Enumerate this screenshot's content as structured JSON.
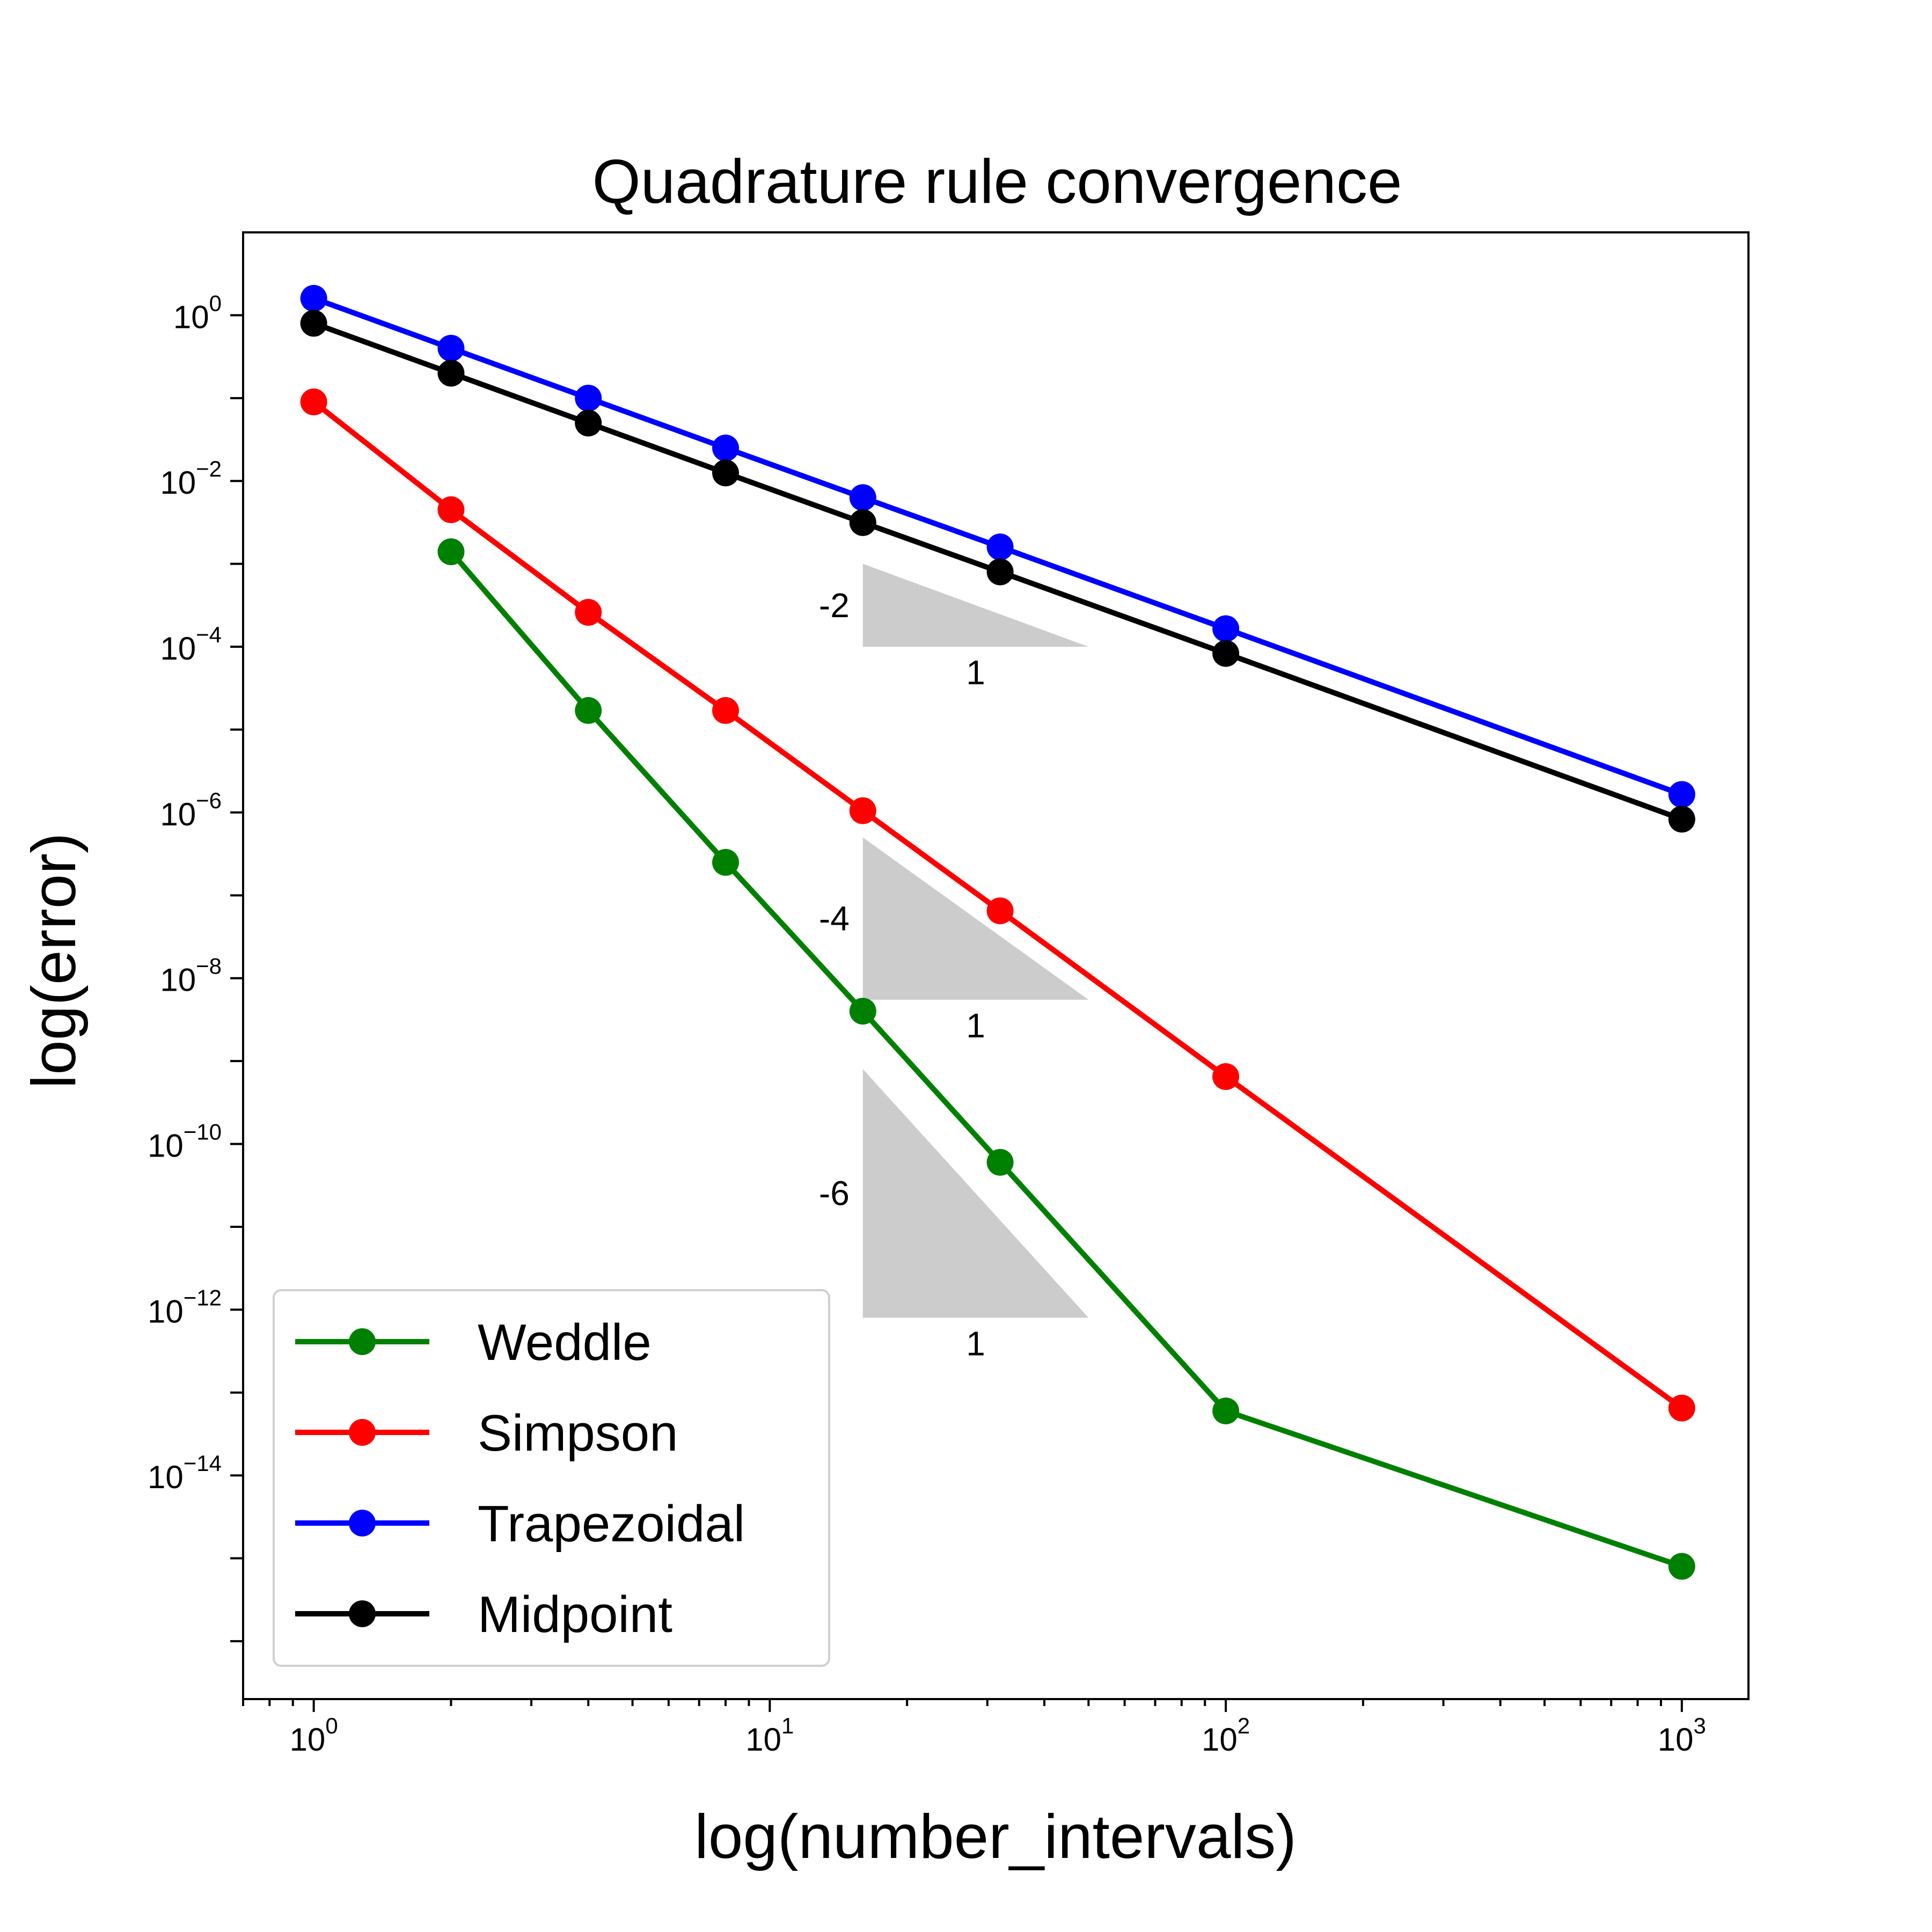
{
  "chart_data": {
    "type": "line",
    "title": "Quadrature rule convergence",
    "xlabel": "log(number_intervals)",
    "ylabel": "log(error)",
    "xscale": "log",
    "yscale": "log",
    "xlim": [
      0.7,
      1400
    ],
    "ylim": [
      2e-17,
      10
    ],
    "x_ticks": [
      {
        "base": "10",
        "exp": "0",
        "value": 1
      },
      {
        "base": "10",
        "exp": "1",
        "value": 10
      },
      {
        "base": "10",
        "exp": "2",
        "value": 100
      },
      {
        "base": "10",
        "exp": "3",
        "value": 1000
      }
    ],
    "y_ticks": [
      {
        "base": "10",
        "exp": "0",
        "value": 1
      },
      {
        "base": "10",
        "exp": "−2",
        "value": 0.01
      },
      {
        "base": "10",
        "exp": "−4",
        "value": 0.0001
      },
      {
        "base": "10",
        "exp": "−6",
        "value": 1e-06
      },
      {
        "base": "10",
        "exp": "−8",
        "value": 1e-08
      },
      {
        "base": "10",
        "exp": "−10",
        "value": 1e-10
      },
      {
        "base": "10",
        "exp": "−12",
        "value": 1e-12
      },
      {
        "base": "10",
        "exp": "−14",
        "value": 1e-14
      }
    ],
    "grid": false,
    "legend_position": "lower-left",
    "series": [
      {
        "name": "Weddle",
        "color": "#008000",
        "x": [
          2,
          4,
          8,
          16,
          32,
          100,
          1000
        ],
        "y": [
          0.0014,
          1.7e-05,
          2.5e-07,
          4e-09,
          6e-11,
          6e-14,
          8e-16
        ]
      },
      {
        "name": "Simpson",
        "color": "#ff0000",
        "x": [
          1,
          2,
          4,
          8,
          16,
          32,
          100,
          1000
        ],
        "y": [
          0.09,
          0.0045,
          0.00026,
          1.7e-05,
          1.05e-06,
          6.5e-08,
          6.5e-10,
          6.5e-14
        ]
      },
      {
        "name": "Trapezoidal",
        "color": "#0000ff",
        "x": [
          1,
          2,
          4,
          8,
          16,
          32,
          100,
          1000
        ],
        "y": [
          1.6,
          0.4,
          0.1,
          0.025,
          0.0063,
          0.0016,
          0.000165,
          1.65e-06
        ]
      },
      {
        "name": "Midpoint",
        "color": "#000000",
        "x": [
          1,
          2,
          4,
          8,
          16,
          32,
          100,
          1000
        ],
        "y": [
          0.8,
          0.2,
          0.05,
          0.0125,
          0.00315,
          0.0008,
          8.3e-05,
          8.3e-07
        ]
      }
    ],
    "slope_triangles": [
      {
        "rise_label": "-2",
        "run_label": "1",
        "x0": 16,
        "x1": 50,
        "y_top": 0.001,
        "y_bottom": 0.0001,
        "color": "#cccccc"
      },
      {
        "rise_label": "-4",
        "run_label": "1",
        "x0": 16,
        "x1": 50,
        "y_top": 5e-07,
        "y_bottom": 5.5e-09,
        "color": "#cccccc"
      },
      {
        "rise_label": "-6",
        "run_label": "1",
        "x0": 16,
        "x1": 50,
        "y_top": 8e-10,
        "y_bottom": 8e-13,
        "color": "#cccccc"
      }
    ]
  }
}
